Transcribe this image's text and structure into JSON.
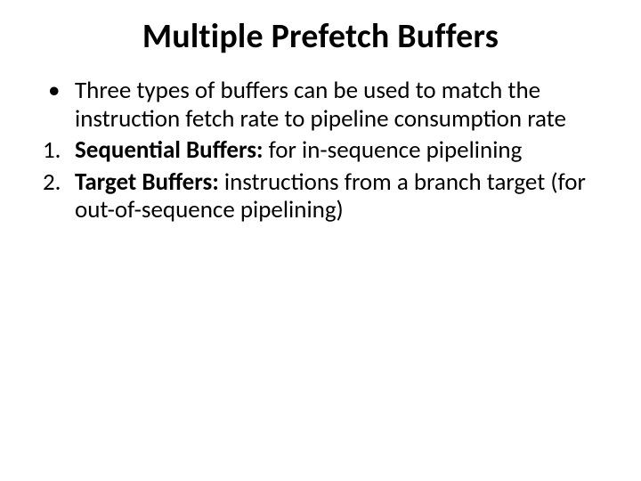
{
  "background_color": "#ffffff",
  "text_color": "#000000",
  "font_family": "Calibri, 'Segoe UI', Arial, sans-serif",
  "title": {
    "text": "Multiple Prefetch Buffers",
    "fontsize": 38,
    "fontweight": 700,
    "align": "center"
  },
  "body": {
    "fontsize": 27,
    "lineheight": 1.17,
    "items": [
      {
        "kind": "bullet",
        "marker": "•",
        "text": "Three types of buffers can be used to match the instruction fetch rate to pipeline consumption rate"
      },
      {
        "kind": "numbered",
        "marker": "1.",
        "bold": "Sequential Buffers: ",
        "rest": "for in-sequence pipelining"
      },
      {
        "kind": "numbered",
        "marker": "2.",
        "bold": "Target Buffers: ",
        "rest": "instructions from a branch target  (for out-of-sequence pipelining)"
      }
    ]
  }
}
